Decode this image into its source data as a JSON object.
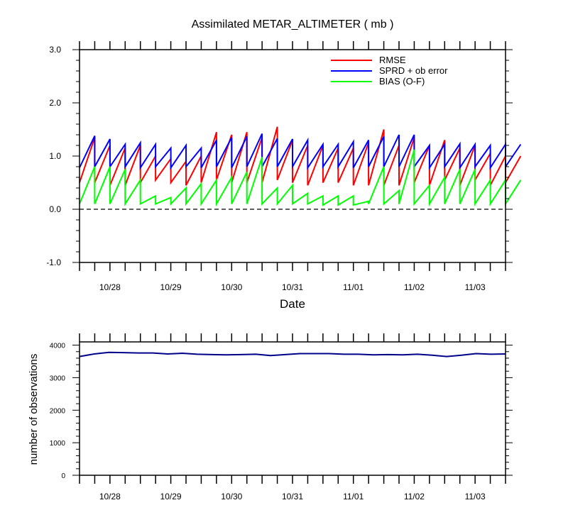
{
  "chart_data": [
    {
      "type": "line",
      "title": "Assimilated METAR_ALTIMETER ( mb )",
      "xlabel": "Date",
      "ylabel": "",
      "ylim": [
        -1.0,
        3.0
      ],
      "yticks": [
        "3.0",
        "2.0",
        "1.0",
        "0.0",
        "-1.0"
      ],
      "x_tick_labels": [
        "10/28",
        "10/29",
        "10/30",
        "10/31",
        "11/01",
        "11/02",
        "11/03"
      ],
      "legend_placement": "top-right",
      "colors": {
        "RMSE": "#ff0000",
        "SPRD + ob error": "#0000ff",
        "BIAS (O-F)": "#00ff00",
        "zero_line": "#000000"
      },
      "x_start": "10/27 12Z",
      "x_step_hours": 6,
      "series": [
        {
          "name": "RMSE",
          "color": "#ff0000",
          "pattern": "sawtooth",
          "low": [
            0.5,
            0.5,
            0.45,
            0.45,
            0.5,
            0.55,
            0.5,
            0.45,
            0.5,
            0.55,
            0.5,
            0.5,
            0.5,
            0.55,
            0.5,
            0.45,
            0.5,
            0.5,
            0.45,
            0.45,
            0.45,
            0.45,
            0.5,
            0.45,
            0.55,
            0.45,
            0.55,
            0.45,
            0.5
          ],
          "high": [
            1.35,
            1.2,
            1.15,
            1.2,
            1.0,
            0.95,
            0.9,
            1.0,
            1.45,
            1.4,
            1.45,
            1.35,
            1.55,
            1.3,
            1.2,
            1.2,
            1.15,
            1.15,
            1.25,
            1.5,
            1.2,
            1.35,
            1.2,
            1.3,
            1.15,
            1.2,
            1.05,
            1.0,
            1.0
          ]
        },
        {
          "name": "SPRD + ob error",
          "color": "#0000ff",
          "pattern": "sawtooth",
          "low": [
            0.78,
            0.8,
            0.8,
            0.8,
            0.78,
            0.8,
            0.78,
            0.8,
            0.78,
            0.8,
            0.78,
            0.8,
            0.8,
            0.8,
            0.8,
            0.78,
            0.8,
            0.8,
            0.78,
            0.8,
            0.8,
            0.8,
            0.8,
            0.78,
            0.8,
            0.78,
            0.8,
            0.78,
            0.8
          ],
          "high": [
            1.38,
            1.32,
            1.22,
            1.25,
            1.22,
            1.15,
            1.2,
            1.15,
            1.3,
            1.35,
            1.37,
            1.42,
            1.33,
            1.32,
            1.3,
            1.22,
            1.22,
            1.27,
            1.3,
            1.37,
            1.4,
            1.4,
            1.2,
            1.22,
            1.23,
            1.22,
            1.2,
            1.22,
            1.22
          ]
        },
        {
          "name": "BIAS (O-F)",
          "color": "#00ff00",
          "pattern": "sawtooth",
          "low": [
            0.1,
            0.1,
            0.1,
            0.1,
            0.1,
            0.1,
            0.1,
            0.1,
            0.1,
            0.1,
            0.1,
            0.1,
            0.1,
            0.1,
            0.1,
            0.1,
            0.08,
            0.08,
            0.08,
            0.1,
            0.1,
            0.1,
            0.1,
            0.1,
            0.1,
            0.1,
            0.1,
            0.1,
            0.1
          ],
          "high": [
            0.8,
            0.8,
            0.75,
            0.55,
            0.25,
            0.22,
            0.4,
            0.48,
            0.55,
            0.6,
            0.7,
            0.98,
            0.4,
            0.45,
            0.3,
            0.25,
            0.25,
            0.25,
            0.15,
            0.8,
            0.35,
            1.12,
            0.45,
            0.6,
            0.75,
            0.75,
            0.55,
            0.55,
            0.55
          ]
        }
      ]
    },
    {
      "type": "line",
      "title": "",
      "xlabel": "",
      "ylabel": "number of observations",
      "ylim": [
        0,
        4100
      ],
      "yticks": [
        "4000",
        "3000",
        "2000",
        "1000",
        "0"
      ],
      "x_tick_labels": [
        "10/28",
        "10/29",
        "10/30",
        "10/31",
        "11/01",
        "11/02",
        "11/03"
      ],
      "x_start": "10/27 12Z",
      "x_step_hours": 6,
      "series": [
        {
          "name": "",
          "color": "#00008b",
          "values": [
            3650,
            3730,
            3780,
            3770,
            3760,
            3760,
            3730,
            3750,
            3720,
            3710,
            3700,
            3710,
            3720,
            3680,
            3710,
            3740,
            3740,
            3740,
            3720,
            3720,
            3700,
            3710,
            3700,
            3720,
            3690,
            3650,
            3690,
            3740,
            3720,
            3730
          ]
        }
      ]
    }
  ]
}
